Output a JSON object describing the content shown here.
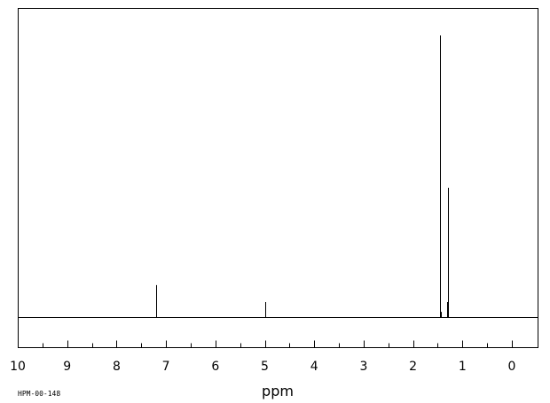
{
  "chart_data": {
    "type": "line",
    "xlabel": "ppm",
    "xlim": [
      10.5,
      -0.5
    ],
    "x_reversed": true,
    "major_ticks": [
      10,
      9,
      8,
      7,
      6,
      5,
      4,
      3,
      2,
      1,
      0
    ],
    "minor_tick_step": 0.5,
    "ylim": [
      0,
      100
    ],
    "grid": false,
    "peaks": [
      {
        "ppm": 7.2,
        "height": 11.5
      },
      {
        "ppm": 5.0,
        "height": 5.5
      },
      {
        "ppm": 1.45,
        "height": 100
      },
      {
        "ppm": 1.43,
        "height": 2.0
      },
      {
        "ppm": 1.29,
        "height": 46
      },
      {
        "ppm": 1.31,
        "height": 5.5
      }
    ],
    "code": "HPM-00-148"
  }
}
